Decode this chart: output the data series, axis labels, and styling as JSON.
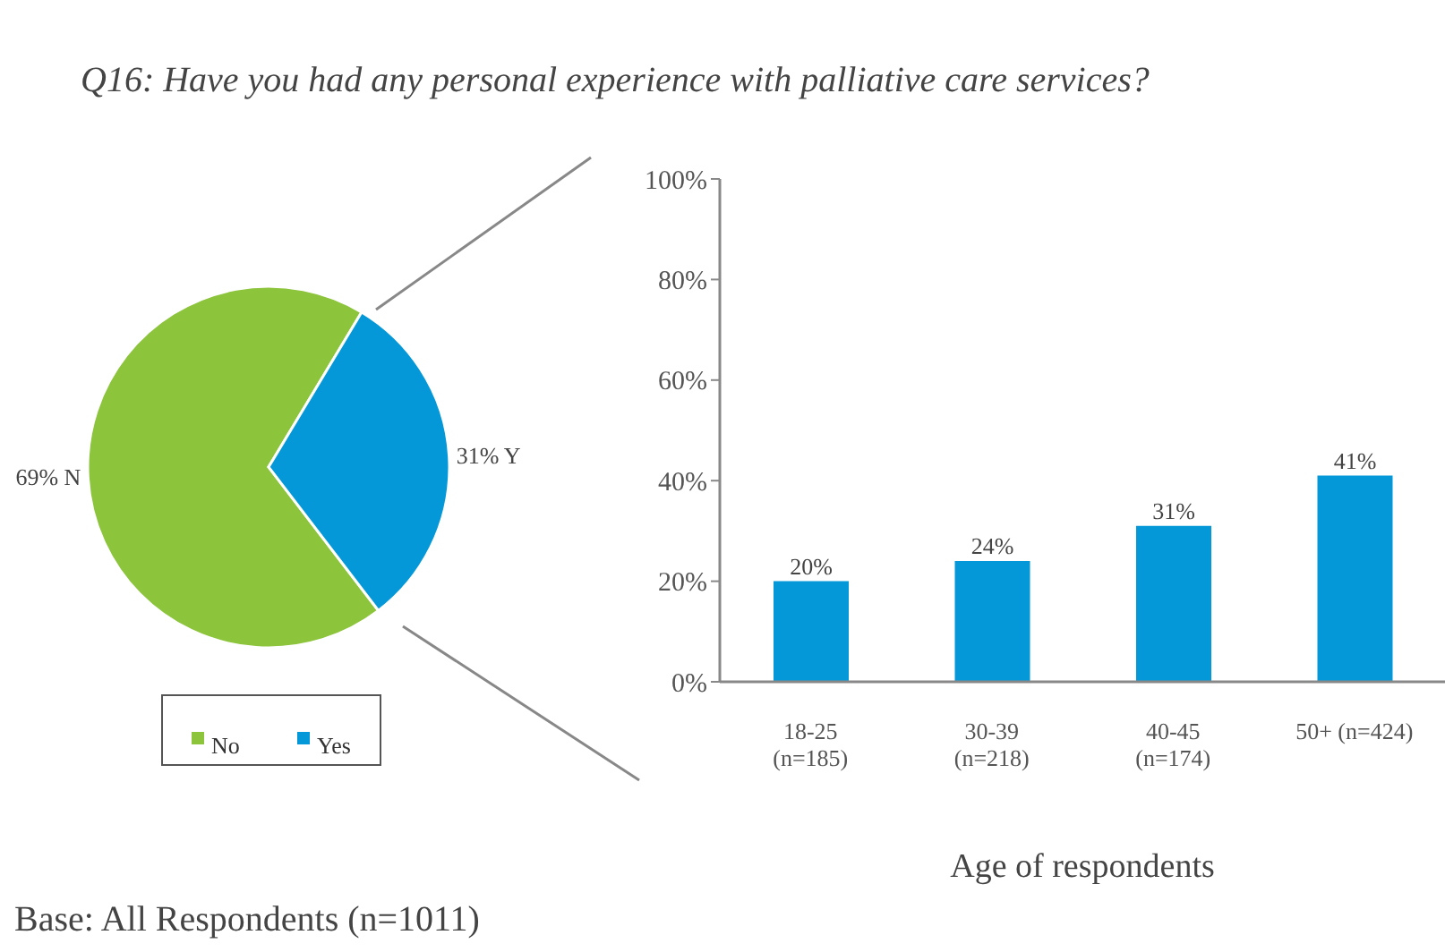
{
  "chart_data": [
    {
      "type": "pie",
      "title": "Q16: Have you had any personal experience with palliative care services?",
      "categories": [
        "No",
        "Yes"
      ],
      "values": [
        69,
        31
      ],
      "colors": [
        "#8cc43c",
        "#0598d8"
      ],
      "value_labels": [
        "69% N",
        "31% Y"
      ],
      "legend": "bottom",
      "annotations": [
        "Base: All Respondents (n=1011)"
      ]
    },
    {
      "type": "bar",
      "categories": [
        "18-25 (n=185)",
        "30-39 (n=218)",
        "40-45 (n=174)",
        "50+ (n=424)"
      ],
      "values": [
        20,
        24,
        31,
        41
      ],
      "color": "#0598d8",
      "value_labels": [
        "20%",
        "24%",
        "31%",
        "41%"
      ],
      "xlabel": "Age of respondents",
      "ylim": [
        0,
        100
      ],
      "yticks": [
        {
          "value": 0,
          "label": "0%"
        },
        {
          "value": 20,
          "label": "20%"
        },
        {
          "value": 40,
          "label": "40%"
        },
        {
          "value": 60,
          "label": "60%"
        },
        {
          "value": 80,
          "label": "80%"
        },
        {
          "value": 100,
          "label": "100%"
        }
      ]
    }
  ]
}
